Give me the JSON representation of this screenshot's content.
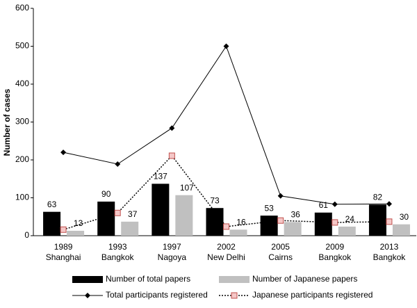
{
  "chart_data": {
    "type": "bar",
    "y_label": "Number of cases",
    "categories": [
      [
        "1989",
        "Shanghai"
      ],
      [
        "1993",
        "Bangkok"
      ],
      [
        "1997",
        "Nagoya"
      ],
      [
        "2002",
        "New Delhi"
      ],
      [
        "2005",
        "Cairns"
      ],
      [
        "2009",
        "Bangkok"
      ],
      [
        "2013",
        "Bangkok"
      ]
    ],
    "series": [
      {
        "name": "Number of total papers",
        "type": "bar",
        "color": "#000000",
        "values": [
          63,
          90,
          137,
          73,
          53,
          61,
          82
        ]
      },
      {
        "name": "Number of Japanese papers",
        "type": "bar",
        "color": "#c0c0c0",
        "values": [
          13,
          37,
          107,
          16,
          36,
          24,
          30
        ]
      },
      {
        "name": "Total participants registered",
        "type": "line",
        "color": "#000000",
        "style": "solid",
        "marker": "diamond",
        "values": [
          220,
          189,
          284,
          500,
          105,
          83,
          84
        ]
      },
      {
        "name": "Japanese participants registered",
        "type": "line",
        "color": "#000000",
        "style": "dotted",
        "marker": "square",
        "marker_color": "#f4c7c7",
        "marker_edge": "#c0504d",
        "values": [
          16,
          60,
          211,
          24,
          40,
          35,
          37
        ]
      }
    ],
    "ylim": [
      0,
      600
    ],
    "yticks": [
      0,
      100,
      200,
      300,
      400,
      500,
      600
    ],
    "grid": false
  }
}
